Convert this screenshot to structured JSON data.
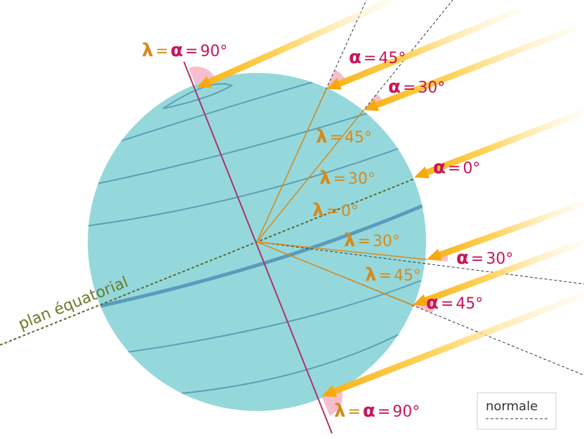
{
  "equatorial_plane_label": "plan équatorial",
  "legend": {
    "label": "normale"
  },
  "annotations": [
    {
      "parts": [
        "λ",
        "=",
        "α",
        "=",
        "90°"
      ]
    },
    {
      "parts": [
        "α",
        "=",
        "45°"
      ]
    },
    {
      "parts": [
        "α",
        "=",
        "30°"
      ]
    },
    {
      "parts": [
        "λ",
        "=",
        "45°"
      ]
    },
    {
      "parts": [
        "λ",
        "=",
        "30°"
      ]
    },
    {
      "parts": [
        "α",
        "=",
        "0°"
      ]
    },
    {
      "parts": [
        "λ",
        "=",
        "0°"
      ]
    },
    {
      "parts": [
        "λ",
        "=",
        "30°"
      ]
    },
    {
      "parts": [
        "α",
        "=",
        "30°"
      ]
    },
    {
      "parts": [
        "λ",
        "=",
        "45°"
      ]
    },
    {
      "parts": [
        "α",
        "=",
        "45°"
      ]
    },
    {
      "parts": [
        "λ",
        "=",
        "α",
        "=",
        "90°"
      ]
    }
  ]
}
